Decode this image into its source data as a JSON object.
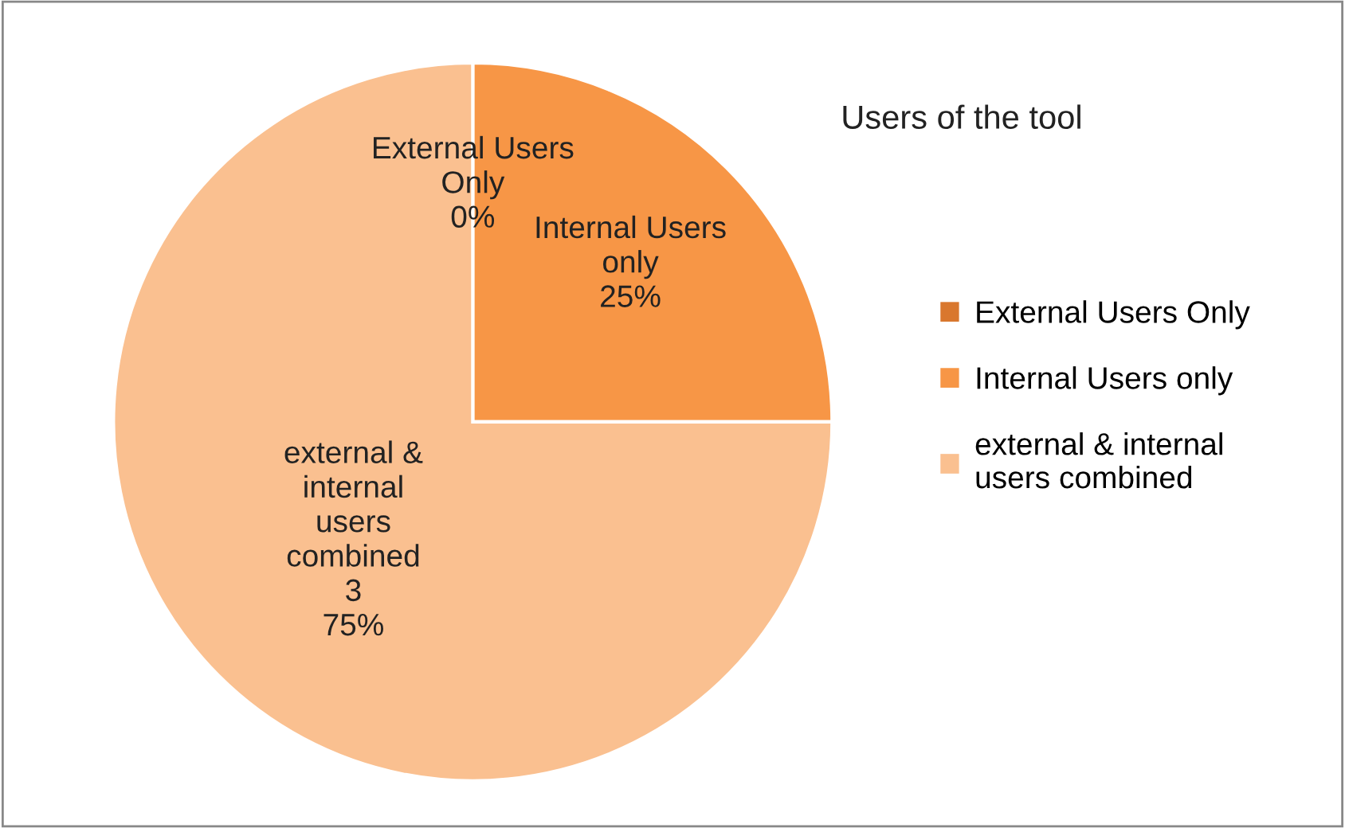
{
  "chart_data": {
    "type": "pie",
    "title": "Users of the tool",
    "categories": [
      "External Users Only",
      "Internal Users only",
      "external & internal users combined"
    ],
    "values": [
      0,
      25,
      75
    ],
    "value_labels": [
      "0%",
      "25%",
      "3\n75%"
    ],
    "colors": [
      "#d9772e",
      "#f79646",
      "#fac090"
    ],
    "legend": "right"
  }
}
